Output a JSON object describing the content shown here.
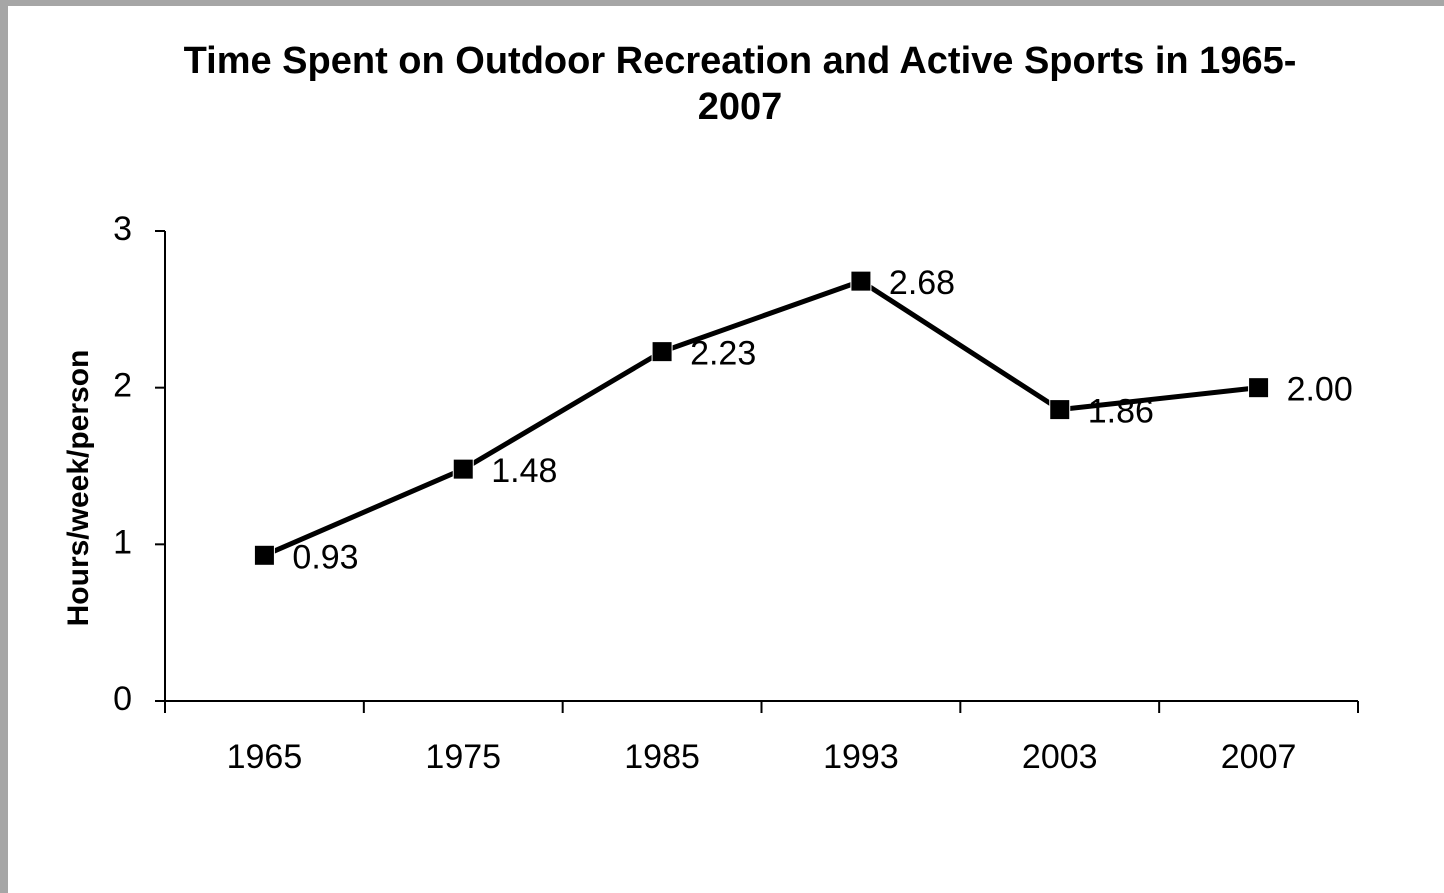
{
  "chart_data": {
    "type": "line",
    "title": "Time Spent on Outdoor Recreation and Active Sports in 1965-2007",
    "y_label": "Hours/week/person",
    "categories": [
      "1965",
      "1975",
      "1985",
      "1993",
      "2003",
      "2007"
    ],
    "series": [
      {
        "name": "Hours/week/person",
        "color": "#000000",
        "values": [
          0.93,
          1.48,
          2.23,
          2.68,
          1.86,
          2.0
        ],
        "value_labels": [
          "0.93",
          "1.48",
          "2.23",
          "2.68",
          "1.86",
          "2.00"
        ]
      }
    ],
    "ylim": [
      0,
      3
    ],
    "yticks": [
      0,
      1,
      2,
      3
    ],
    "grid": false,
    "legend": false,
    "marker": "square"
  }
}
